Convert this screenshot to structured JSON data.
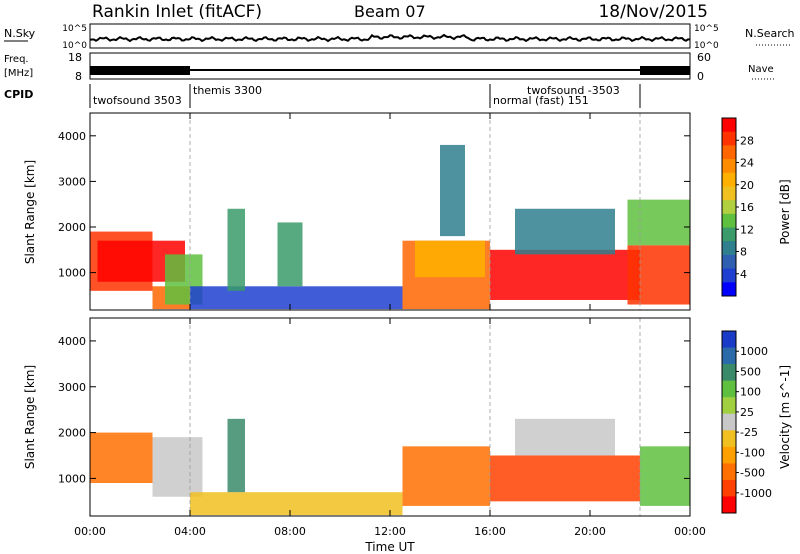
{
  "header": {
    "station": "Rankin Inlet (fitACF)",
    "beam": "Beam 07",
    "date": "18/Nov/2015"
  },
  "top_panels": {
    "nsky_label": "N.Sky",
    "nsky_ticks": [
      "10^5",
      "10^0"
    ],
    "nsearch_label": "N.Search",
    "nsearch_ticks": [
      "10^5",
      "10^0"
    ],
    "freq_label_1": "Freq.",
    "freq_label_2": "[MHz]",
    "freq_ticks": [
      "18",
      "8"
    ],
    "nave_label": "Nave",
    "nave_ticks": [
      "60",
      "0"
    ],
    "cpid_label": "CPID",
    "cpid_segments": [
      {
        "name": "twofsound 3503",
        "start": 0,
        "end": 4
      },
      {
        "name": "themis 3300",
        "start": 4,
        "end": 16
      },
      {
        "name": "normal (fast) 151",
        "start": 16,
        "end": 22
      },
      {
        "name": "twofsound -3503",
        "start": 19.5,
        "end": 22
      }
    ]
  },
  "chart_data": [
    {
      "type": "heatmap",
      "title": "Power",
      "ylabel": "Slant Range [km]",
      "xlabel": "",
      "x_range_hours": [
        0,
        24
      ],
      "ylim": [
        180,
        4500
      ],
      "yticks": [
        1000,
        2000,
        3000,
        4000
      ],
      "colorbar": {
        "label": "Power [dB]",
        "ticks": [
          "28",
          "24",
          "20",
          "16",
          "12",
          "8",
          "4"
        ],
        "colors": [
          "#ff0000",
          "#ff3300",
          "#ff6600",
          "#ff8c00",
          "#ffb000",
          "#f0c020",
          "#b0d040",
          "#5fbf3f",
          "#3a9a6a",
          "#2f7f8f",
          "#2f5fb0",
          "#1f3fd0",
          "#0000ff"
        ]
      },
      "regions": [
        {
          "x0": 0.0,
          "x1": 2.5,
          "y0": 600,
          "y1": 1900,
          "level": 1
        },
        {
          "x0": 0.3,
          "x1": 3.8,
          "y0": 800,
          "y1": 1700,
          "level": 0
        },
        {
          "x0": 2.5,
          "x1": 4.0,
          "y0": 200,
          "y1": 700,
          "level": 2
        },
        {
          "x0": 3.0,
          "x1": 4.5,
          "y0": 300,
          "y1": 1400,
          "level": 7
        },
        {
          "x0": 4.0,
          "x1": 12.5,
          "y0": 200,
          "y1": 700,
          "level": 11
        },
        {
          "x0": 5.5,
          "x1": 6.2,
          "y0": 600,
          "y1": 2400,
          "level": 8
        },
        {
          "x0": 7.5,
          "x1": 8.5,
          "y0": 700,
          "y1": 2100,
          "level": 8
        },
        {
          "x0": 12.5,
          "x1": 16.0,
          "y0": 200,
          "y1": 1700,
          "level": 2
        },
        {
          "x0": 13.0,
          "x1": 15.8,
          "y0": 900,
          "y1": 1700,
          "level": 4
        },
        {
          "x0": 14.0,
          "x1": 15.0,
          "y0": 1800,
          "y1": 3800,
          "level": 9
        },
        {
          "x0": 16.0,
          "x1": 22.0,
          "y0": 400,
          "y1": 1500,
          "level": 0
        },
        {
          "x0": 17.0,
          "x1": 21.0,
          "y0": 1400,
          "y1": 2400,
          "level": 9
        },
        {
          "x0": 21.5,
          "x1": 24.0,
          "y0": 300,
          "y1": 1600,
          "level": 1
        },
        {
          "x0": 21.5,
          "x1": 24.0,
          "y0": 1600,
          "y1": 2600,
          "level": 7
        }
      ]
    },
    {
      "type": "heatmap",
      "title": "Velocity",
      "ylabel": "Slant Range [km]",
      "xlabel": "Time UT",
      "x_range_hours": [
        0,
        24
      ],
      "ylim": [
        180,
        4500
      ],
      "yticks": [
        1000,
        2000,
        3000,
        4000
      ],
      "xticks": [
        "00:00",
        "04:00",
        "08:00",
        "12:00",
        "16:00",
        "20:00",
        "00:00"
      ],
      "colorbar": {
        "label": "Velocity [m s^-1]",
        "ticks": [
          "1000",
          "500",
          "100",
          "25",
          "-25",
          "-100",
          "-500",
          "-1000"
        ],
        "colors": [
          "#1a3ac8",
          "#2a6aa8",
          "#3a8a6a",
          "#5fbf3f",
          "#a0d040",
          "#c8c8c8",
          "#f0c020",
          "#ffa000",
          "#ff7000",
          "#ff4000",
          "#ff0000"
        ]
      },
      "regions": [
        {
          "x0": 0.0,
          "x1": 2.5,
          "y0": 900,
          "y1": 2000,
          "level": 8
        },
        {
          "x0": 2.5,
          "x1": 4.5,
          "y0": 600,
          "y1": 1900,
          "level": 5
        },
        {
          "x0": 4.0,
          "x1": 12.5,
          "y0": 200,
          "y1": 700,
          "level": 6
        },
        {
          "x0": 5.5,
          "x1": 6.2,
          "y0": 700,
          "y1": 2300,
          "level": 2
        },
        {
          "x0": 12.5,
          "x1": 16.0,
          "y0": 400,
          "y1": 1700,
          "level": 8
        },
        {
          "x0": 16.0,
          "x1": 22.0,
          "y0": 500,
          "y1": 1500,
          "level": 9
        },
        {
          "x0": 17.0,
          "x1": 21.0,
          "y0": 1500,
          "y1": 2300,
          "level": 5
        },
        {
          "x0": 22.0,
          "x1": 24.0,
          "y0": 400,
          "y1": 1700,
          "level": 3
        }
      ]
    }
  ]
}
